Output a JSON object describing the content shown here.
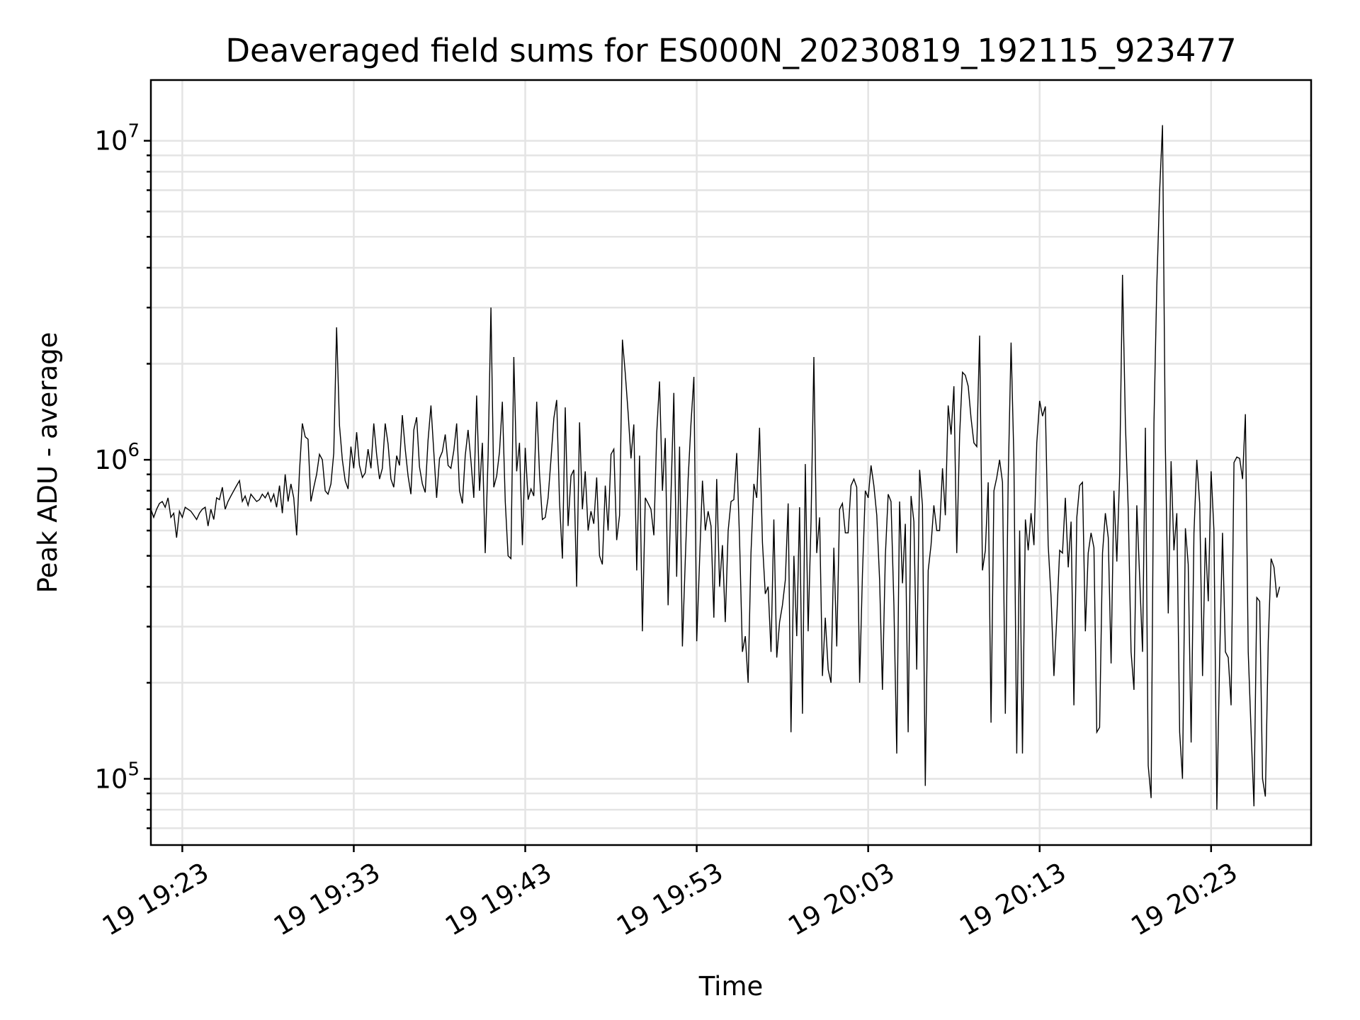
{
  "chart_data": {
    "type": "line",
    "title": "Deaveraged field sums for ES000N_20230819_192115_923477",
    "xlabel": "Time",
    "ylabel": "Peak ADU - average",
    "yscale": "log",
    "grid": true,
    "xlim": [
      "19:21:10",
      "20:28:50"
    ],
    "ylim": [
      62000,
      15500000
    ],
    "x_tick_labels": [
      {
        "time": "19:23",
        "label": "19 19:23"
      },
      {
        "time": "19:33",
        "label": "19 19:33"
      },
      {
        "time": "19:43",
        "label": "19 19:43"
      },
      {
        "time": "19:53",
        "label": "19 19:53"
      },
      {
        "time": "20:03",
        "label": "19 20:03"
      },
      {
        "time": "20:13",
        "label": "19 20:13"
      },
      {
        "time": "20:23",
        "label": "19 20:23"
      }
    ],
    "y_tick_labels": [
      {
        "value": 100000,
        "base": "10",
        "exp": "5"
      },
      {
        "value": 1000000,
        "base": "10",
        "exp": "6"
      },
      {
        "value": 10000000,
        "base": "10",
        "exp": "7"
      }
    ],
    "series": [
      {
        "color": "#000000",
        "x_start": "19:21:10",
        "x_step_seconds": 10,
        "values": [
          700000,
          660000,
          700000,
          730000,
          740000,
          710000,
          760000,
          660000,
          680000,
          570000,
          690000,
          660000,
          710000,
          700000,
          690000,
          670000,
          650000,
          680000,
          700000,
          710000,
          620000,
          700000,
          650000,
          760000,
          750000,
          820000,
          700000,
          740000,
          770000,
          800000,
          830000,
          860000,
          740000,
          770000,
          720000,
          780000,
          760000,
          740000,
          750000,
          780000,
          760000,
          790000,
          740000,
          780000,
          710000,
          830000,
          680000,
          900000,
          740000,
          840000,
          760000,
          580000,
          920000,
          1300000,
          1180000,
          1160000,
          740000,
          820000,
          900000,
          1040000,
          1000000,
          800000,
          780000,
          840000,
          1050000,
          2600000,
          1280000,
          1000000,
          860000,
          810000,
          1100000,
          940000,
          1220000,
          960000,
          880000,
          910000,
          1080000,
          940000,
          1300000,
          1040000,
          870000,
          940000,
          1300000,
          1120000,
          870000,
          820000,
          1030000,
          960000,
          1380000,
          1080000,
          890000,
          780000,
          1240000,
          1360000,
          950000,
          840000,
          790000,
          1150000,
          1480000,
          1060000,
          760000,
          1010000,
          1060000,
          1200000,
          960000,
          940000,
          1070000,
          1300000,
          800000,
          730000,
          1030000,
          1240000,
          990000,
          760000,
          1590000,
          800000,
          1130000,
          510000,
          1030000,
          3000000,
          820000,
          890000,
          1060000,
          1520000,
          740000,
          500000,
          490000,
          2100000,
          920000,
          1130000,
          540000,
          1090000,
          750000,
          810000,
          770000,
          1520000,
          900000,
          650000,
          660000,
          760000,
          1000000,
          1350000,
          1540000,
          740000,
          490000,
          1460000,
          620000,
          890000,
          930000,
          400000,
          1310000,
          700000,
          920000,
          600000,
          690000,
          630000,
          880000,
          500000,
          470000,
          830000,
          600000,
          1040000,
          1080000,
          560000,
          670000,
          2380000,
          1870000,
          1400000,
          1010000,
          1290000,
          450000,
          1030000,
          290000,
          760000,
          730000,
          700000,
          580000,
          1210000,
          1760000,
          800000,
          1170000,
          350000,
          780000,
          1620000,
          430000,
          1100000,
          260000,
          480000,
          870000,
          1300000,
          1820000,
          270000,
          480000,
          860000,
          600000,
          690000,
          620000,
          320000,
          870000,
          400000,
          540000,
          310000,
          600000,
          740000,
          750000,
          1050000,
          560000,
          250000,
          280000,
          200000,
          510000,
          840000,
          760000,
          1260000,
          550000,
          380000,
          400000,
          250000,
          650000,
          240000,
          310000,
          350000,
          420000,
          730000,
          140000,
          500000,
          280000,
          710000,
          160000,
          970000,
          290000,
          640000,
          2100000,
          510000,
          660000,
          210000,
          320000,
          220000,
          200000,
          530000,
          260000,
          700000,
          730000,
          590000,
          590000,
          830000,
          870000,
          820000,
          200000,
          440000,
          800000,
          760000,
          960000,
          830000,
          670000,
          420000,
          190000,
          500000,
          780000,
          740000,
          350000,
          120000,
          740000,
          410000,
          630000,
          140000,
          770000,
          640000,
          220000,
          930000,
          720000,
          95000,
          450000,
          540000,
          720000,
          600000,
          600000,
          940000,
          670000,
          1480000,
          1200000,
          1700000,
          510000,
          1200000,
          1880000,
          1840000,
          1700000,
          1350000,
          1130000,
          1100000,
          2450000,
          450000,
          520000,
          850000,
          150000,
          800000,
          880000,
          1000000,
          850000,
          160000,
          860000,
          2330000,
          1000000,
          120000,
          600000,
          120000,
          650000,
          520000,
          680000,
          540000,
          1130000,
          1530000,
          1370000,
          1470000,
          540000,
          370000,
          210000,
          320000,
          520000,
          510000,
          760000,
          460000,
          640000,
          170000,
          660000,
          830000,
          850000,
          290000,
          510000,
          590000,
          530000,
          140000,
          145000,
          510000,
          680000,
          570000,
          230000,
          800000,
          480000,
          900000,
          3800000,
          1300000,
          700000,
          250000,
          190000,
          720000,
          430000,
          250000,
          1260000,
          110000,
          87000,
          1300000,
          3500000,
          7000000,
          11200000,
          1100000,
          330000,
          990000,
          520000,
          680000,
          140000,
          100000,
          610000,
          470000,
          130000,
          590000,
          1000000,
          730000,
          210000,
          570000,
          360000,
          920000,
          600000,
          80000,
          240000,
          590000,
          250000,
          240000,
          170000,
          980000,
          1020000,
          1010000,
          870000,
          1390000,
          250000,
          140000,
          82000,
          370000,
          360000,
          100000,
          88000,
          270000,
          490000,
          460000,
          370000,
          400000
        ]
      }
    ]
  }
}
